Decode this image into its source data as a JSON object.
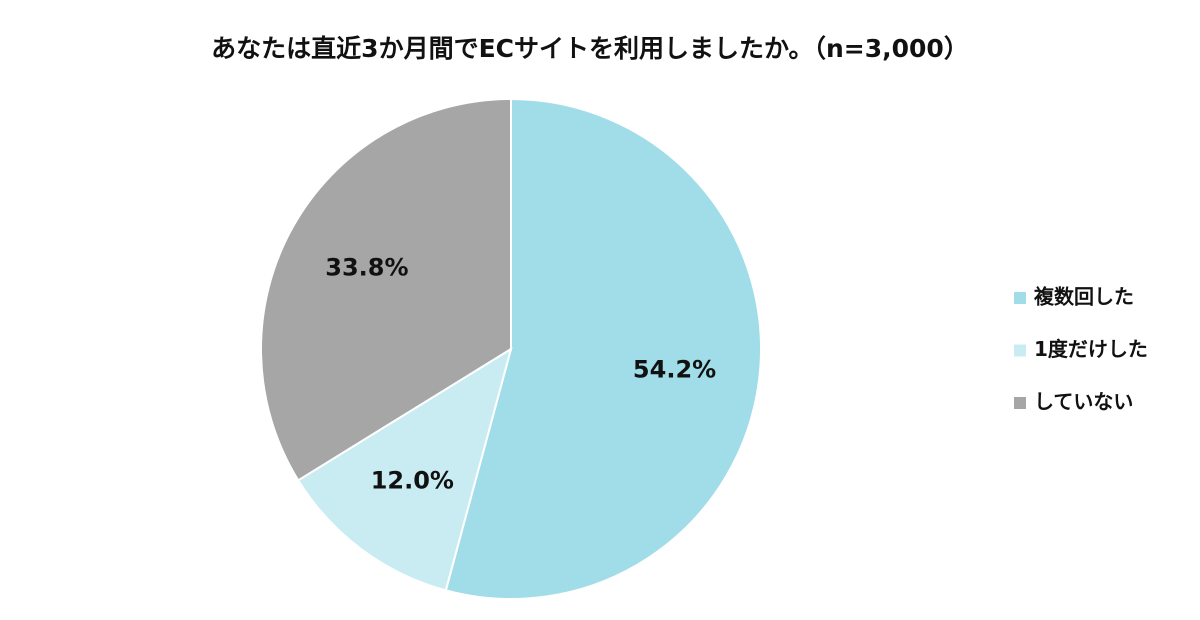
{
  "chart_data": {
    "type": "pie",
    "title": "あなたは直近3か月間でECサイトを利用しましたか。（n=3,000）",
    "categories": [
      "複数回した",
      "1度だけした",
      "していない"
    ],
    "values": [
      54.2,
      12.0,
      33.8
    ],
    "value_labels": [
      "54.2%",
      "12.0%",
      "33.8%"
    ],
    "colors": [
      "#a0dde8",
      "#c8ecf1",
      "#a6a6a6"
    ],
    "legend": "right"
  }
}
